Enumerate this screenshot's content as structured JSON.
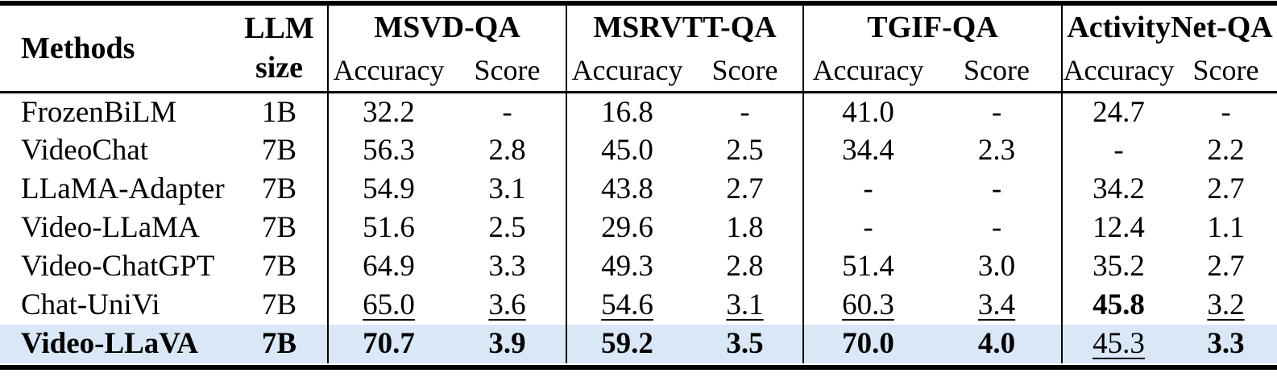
{
  "table": {
    "highlight_color": "#d9e7f7",
    "header": {
      "methods_label": "Methods",
      "llm_line1": "LLM",
      "llm_line2": "size",
      "groups": [
        {
          "name": "MSVD-QA",
          "sub1": "Accuracy",
          "sub2": "Score"
        },
        {
          "name": "MSRVTT-QA",
          "sub1": "Accuracy",
          "sub2": "Score"
        },
        {
          "name": "TGIF-QA",
          "sub1": "Accuracy",
          "sub2": "Score"
        },
        {
          "name": "ActivityNet-QA",
          "sub1": "Accuracy",
          "sub2": "Score"
        }
      ]
    },
    "rows": [
      {
        "method": "FrozenBiLM",
        "llm_size": "1B",
        "highlight": false,
        "bold_method": false,
        "values": [
          "32.2",
          "-",
          "16.8",
          "-",
          "41.0",
          "-",
          "24.7",
          "-"
        ],
        "styles": [
          "p",
          "p",
          "p",
          "p",
          "p",
          "p",
          "p",
          "p"
        ]
      },
      {
        "method": "VideoChat",
        "llm_size": "7B",
        "highlight": false,
        "bold_method": false,
        "values": [
          "56.3",
          "2.8",
          "45.0",
          "2.5",
          "34.4",
          "2.3",
          "-",
          "2.2"
        ],
        "styles": [
          "p",
          "p",
          "p",
          "p",
          "p",
          "p",
          "p",
          "p"
        ]
      },
      {
        "method": "LLaMA-Adapter",
        "llm_size": "7B",
        "highlight": false,
        "bold_method": false,
        "values": [
          "54.9",
          "3.1",
          "43.8",
          "2.7",
          "-",
          "-",
          "34.2",
          "2.7"
        ],
        "styles": [
          "p",
          "p",
          "p",
          "p",
          "p",
          "p",
          "p",
          "p"
        ]
      },
      {
        "method": "Video-LLaMA",
        "llm_size": "7B",
        "highlight": false,
        "bold_method": false,
        "values": [
          "51.6",
          "2.5",
          "29.6",
          "1.8",
          "-",
          "-",
          "12.4",
          "1.1"
        ],
        "styles": [
          "p",
          "p",
          "p",
          "p",
          "p",
          "p",
          "p",
          "p"
        ]
      },
      {
        "method": "Video-ChatGPT",
        "llm_size": "7B",
        "highlight": false,
        "bold_method": false,
        "values": [
          "64.9",
          "3.3",
          "49.3",
          "2.8",
          "51.4",
          "3.0",
          "35.2",
          "2.7"
        ],
        "styles": [
          "p",
          "p",
          "p",
          "p",
          "p",
          "p",
          "p",
          "p"
        ]
      },
      {
        "method": "Chat-UniVi",
        "llm_size": "7B",
        "highlight": false,
        "bold_method": false,
        "values": [
          "65.0",
          "3.6",
          "54.6",
          "3.1",
          "60.3",
          "3.4",
          "45.8",
          "3.2"
        ],
        "styles": [
          "u",
          "u",
          "u",
          "u",
          "u",
          "u",
          "b",
          "u"
        ]
      },
      {
        "method": "Video-LLaVA",
        "llm_size": "7B",
        "highlight": true,
        "bold_method": true,
        "values": [
          "70.7",
          "3.9",
          "59.2",
          "3.5",
          "70.0",
          "4.0",
          "45.3",
          "3.3"
        ],
        "styles": [
          "b",
          "b",
          "b",
          "b",
          "b",
          "b",
          "u",
          "b"
        ]
      }
    ]
  }
}
